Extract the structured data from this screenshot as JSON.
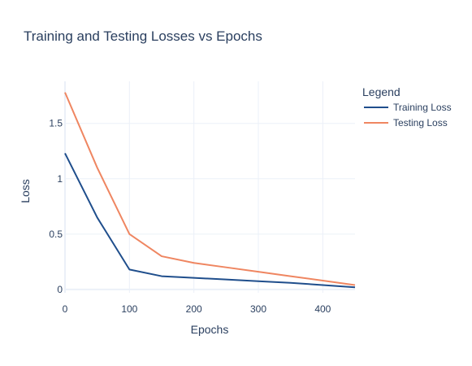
{
  "chart_data": {
    "type": "line",
    "title": "Training and Testing Losses vs Epochs",
    "xlabel": "Epochs",
    "ylabel": "Loss",
    "xlim": [
      0,
      450
    ],
    "ylim": [
      -0.03,
      1.88
    ],
    "xticks": [
      0,
      100,
      200,
      300,
      400
    ],
    "xtick_labels": [
      "0",
      "100",
      "200",
      "300",
      "400"
    ],
    "yticks": [
      0,
      0.5,
      1,
      1.5
    ],
    "ytick_labels": [
      "0",
      "0.5",
      "1",
      "1.5"
    ],
    "grid": true,
    "legend": {
      "title": "Legend",
      "placement": "top-right"
    },
    "series": [
      {
        "name": "Training Loss",
        "color": "#1f4e8c",
        "x": [
          0,
          50,
          100,
          150,
          200,
          250,
          300,
          350,
          400,
          450
        ],
        "y": [
          1.23,
          0.65,
          0.18,
          0.12,
          0.105,
          0.09,
          0.075,
          0.06,
          0.04,
          0.02
        ]
      },
      {
        "name": "Testing Loss",
        "color": "#ef8661",
        "x": [
          0,
          50,
          100,
          150,
          200,
          250,
          300,
          350,
          400,
          450
        ],
        "y": [
          1.78,
          1.1,
          0.5,
          0.3,
          0.24,
          0.2,
          0.16,
          0.12,
          0.08,
          0.04
        ]
      }
    ]
  }
}
